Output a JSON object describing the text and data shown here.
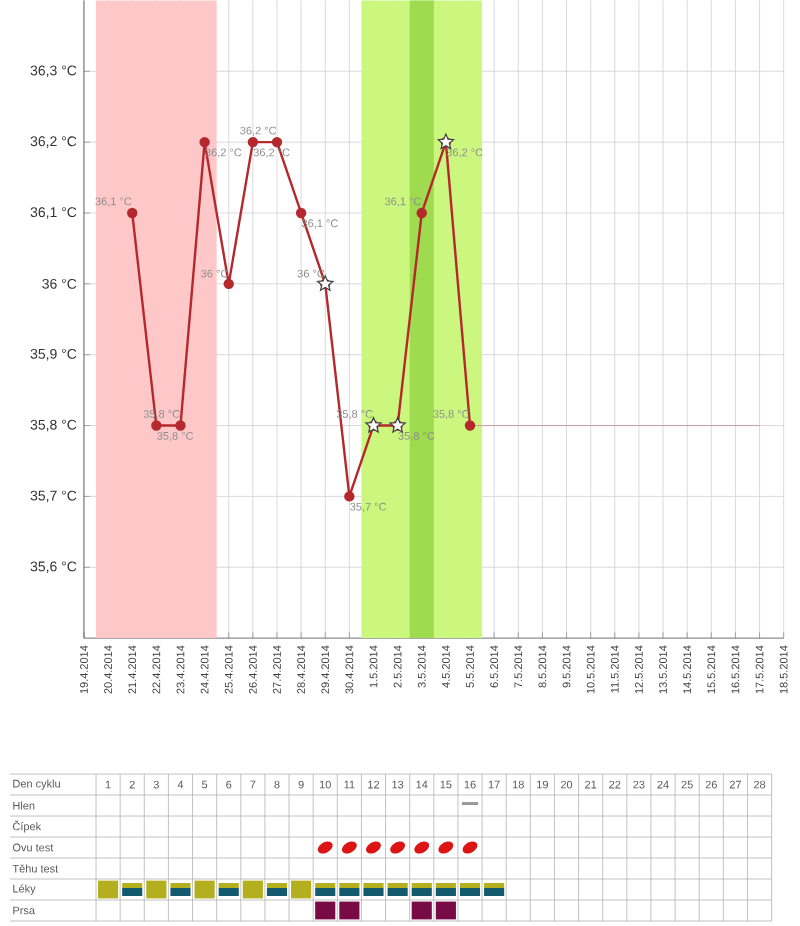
{
  "chart_data": [
    {
      "type": "line",
      "xlim": [
        "2014-04-19",
        "2014-05-18"
      ],
      "xticks": [
        {
          "value": "2014-04-19",
          "label": "19.4.2014"
        },
        {
          "value": "2014-04-20",
          "label": "20.4.2014"
        },
        {
          "value": "2014-04-21",
          "label": "21.4.2014"
        },
        {
          "value": "2014-04-22",
          "label": "22.4.2014"
        },
        {
          "value": "2014-04-23",
          "label": "23.4.2014"
        },
        {
          "value": "2014-04-24",
          "label": "24.4.2014"
        },
        {
          "value": "2014-04-25",
          "label": "25.4.2014"
        },
        {
          "value": "2014-04-26",
          "label": "26.4.2014"
        },
        {
          "value": "2014-04-27",
          "label": "27.4.2014"
        },
        {
          "value": "2014-04-28",
          "label": "28.4.2014"
        },
        {
          "value": "2014-04-29",
          "label": "29.4.2014"
        },
        {
          "value": "2014-04-30",
          "label": "30.4.2014"
        },
        {
          "value": "2014-05-01",
          "label": "1.5.2014"
        },
        {
          "value": "2014-05-02",
          "label": "2.5.2014"
        },
        {
          "value": "2014-05-03",
          "label": "3.5.2014"
        },
        {
          "value": "2014-05-04",
          "label": "4.5.2014"
        },
        {
          "value": "2014-05-05",
          "label": "5.5.2014"
        },
        {
          "value": "2014-05-06",
          "label": "6.5.2014"
        },
        {
          "value": "2014-05-07",
          "label": "7.5.2014"
        },
        {
          "value": "2014-05-08",
          "label": "8.5.2014"
        },
        {
          "value": "2014-05-09",
          "label": "9.5.2014"
        },
        {
          "value": "2014-05-10",
          "label": "10.5.2014"
        },
        {
          "value": "2014-05-11",
          "label": "11.5.2014"
        },
        {
          "value": "2014-05-12",
          "label": "12.5.2014"
        },
        {
          "value": "2014-05-13",
          "label": "13.5.2014"
        },
        {
          "value": "2014-05-14",
          "label": "14.5.2014"
        },
        {
          "value": "2014-05-15",
          "label": "15.5.2014"
        },
        {
          "value": "2014-05-16",
          "label": "16.5.2014"
        },
        {
          "value": "2014-05-17",
          "label": "17.5.2014"
        },
        {
          "value": "2014-05-18",
          "label": "18.5.2014"
        }
      ],
      "ylim": [
        35.5,
        36.4
      ],
      "yticks": [
        {
          "value": 35.6,
          "label": "35,6 °C"
        },
        {
          "value": 35.7,
          "label": "35,7 °C"
        },
        {
          "value": 35.8,
          "label": "35,8 °C"
        },
        {
          "value": 35.9,
          "label": "35,9 °C"
        },
        {
          "value": 36.0,
          "label": "36 °C"
        },
        {
          "value": 36.1,
          "label": "36,1 °C"
        },
        {
          "value": 36.2,
          "label": "36,2 °C"
        },
        {
          "value": 36.3,
          "label": "36,3 °C"
        }
      ],
      "grid": true,
      "bands": [
        {
          "axis": "x",
          "from": "2014-04-19T12:00",
          "to": "2014-04-24T12:00",
          "color": "#ffc8c8"
        },
        {
          "axis": "x",
          "from": "2014-04-30T12:00",
          "to": "2014-05-05T12:00",
          "color": "#ccf77f"
        },
        {
          "axis": "x",
          "from": "2014-05-02T12:00",
          "to": "2014-05-03T12:00",
          "color": "#9edb4e"
        }
      ],
      "series": [
        {
          "type": "line",
          "color": "#b5282d",
          "marker": "circle",
          "x": [
            "2014-04-21",
            "2014-04-22",
            "2014-04-23",
            "2014-04-24",
            "2014-04-25",
            "2014-04-26",
            "2014-04-27",
            "2014-04-28",
            "2014-04-29",
            "2014-04-30",
            "2014-05-01",
            "2014-05-02",
            "2014-05-03",
            "2014-05-04",
            "2014-05-05"
          ],
          "values": [
            36.1,
            35.8,
            35.8,
            36.2,
            36.0,
            36.2,
            36.2,
            36.1,
            36.0,
            35.7,
            35.8,
            35.8,
            36.1,
            36.2,
            35.8
          ],
          "value_labels": [
            "36,1 °C",
            "35,8 °C",
            "35,8 °C",
            "36,2 °C",
            "36 °C",
            "36,2 °C",
            "36,2 °C",
            "36,1 °C",
            "36 °C",
            "35,7 °C",
            "35,8 °C",
            "35,8 °C",
            "36,1 °C",
            "36,2 °C",
            "35,8 °C"
          ]
        },
        {
          "type": "scatter",
          "color": "#ffffff",
          "marker": "star",
          "x": [
            "2014-04-29",
            "2014-05-01",
            "2014-05-02",
            "2014-05-04"
          ],
          "values": [
            36.0,
            35.8,
            35.8,
            36.2
          ]
        },
        {
          "type": "line",
          "color": "#c8a0a0",
          "marker": "none",
          "x": [
            "2014-05-05",
            "2014-05-17"
          ],
          "values": [
            35.8,
            35.8
          ]
        }
      ]
    },
    {
      "type": "heatmap",
      "xlabel": "Den cyklu",
      "categories": [
        "1",
        "2",
        "3",
        "4",
        "5",
        "6",
        "7",
        "8",
        "9",
        "10",
        "11",
        "12",
        "13",
        "14",
        "15",
        "16",
        "17",
        "18",
        "19",
        "20",
        "21",
        "22",
        "23",
        "24",
        "25",
        "26",
        "27",
        "28"
      ],
      "y_categories": [
        "Hlen",
        "Čípek",
        "Ovu test",
        "Těhu test",
        "Léky",
        "Prsa"
      ],
      "cells": [
        [
          null,
          null,
          null,
          null,
          null,
          null,
          null,
          null,
          null,
          null,
          null,
          null,
          null,
          null,
          null,
          null,
          null,
          null,
          null,
          null,
          null,
          null,
          null,
          null,
          null,
          null,
          null,
          null
        ],
        [
          null,
          null,
          null,
          null,
          null,
          null,
          null,
          null,
          null,
          null,
          null,
          null,
          null,
          null,
          null,
          null,
          null,
          null,
          null,
          null,
          null,
          null,
          null,
          null,
          null,
          null,
          null,
          null
        ],
        [
          null,
          null,
          null,
          null,
          null,
          null,
          null,
          null,
          null,
          null,
          null,
          null,
          null,
          null,
          null,
          null,
          null,
          null,
          null,
          null,
          null,
          null,
          null,
          null,
          null,
          null,
          null,
          null
        ],
        [
          null,
          null,
          null,
          null,
          null,
          null,
          null,
          null,
          null,
          null,
          null,
          null,
          null,
          null,
          null,
          null,
          null,
          null,
          null,
          null,
          null,
          null,
          null,
          null,
          null,
          null,
          null,
          null
        ],
        [
          null,
          null,
          null,
          null,
          null,
          null,
          null,
          null,
          null,
          null,
          null,
          null,
          null,
          null,
          null,
          null,
          null,
          null,
          null,
          null,
          null,
          null,
          null,
          null,
          null,
          null,
          null,
          null
        ],
        [
          null,
          null,
          null,
          null,
          null,
          null,
          null,
          null,
          null,
          null,
          null,
          null,
          null,
          null,
          null,
          null,
          null,
          null,
          null,
          null,
          null,
          null,
          null,
          null,
          null,
          null,
          null,
          null
        ]
      ]
    }
  ]
}
